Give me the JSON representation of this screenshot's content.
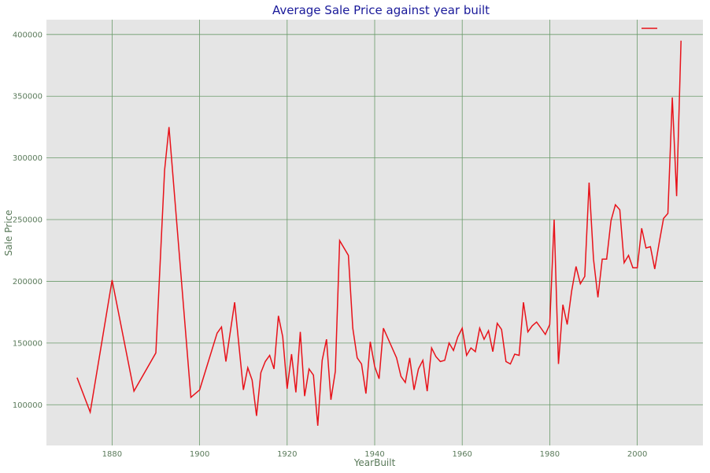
{
  "chart_data": {
    "type": "line",
    "title": "Average Sale Price against year built",
    "xlabel": "YearBuilt",
    "ylabel": "Sale Price",
    "xlim": [
      1865,
      2015
    ],
    "ylim": [
      67000,
      412000
    ],
    "xticks": [
      1880,
      1900,
      1920,
      1940,
      1960,
      1980,
      2000
    ],
    "yticks": [
      100000,
      150000,
      200000,
      250000,
      300000,
      350000,
      400000
    ],
    "grid": true,
    "legend": "top-right",
    "colors": {
      "line": "#e8121a",
      "grid": "#6a9a6a",
      "background": "#e5e5e5",
      "tick": "#5a7a5a",
      "title": "#1a1a9a"
    },
    "series": [
      {
        "x": [
          1872,
          1875,
          1880,
          1885,
          1890,
          1892,
          1893,
          1898,
          1900,
          1904,
          1905,
          1906,
          1908,
          1910,
          1911,
          1912,
          1913,
          1914,
          1915,
          1916,
          1917,
          1918,
          1919,
          1920,
          1921,
          1922,
          1923,
          1924,
          1925,
          1926,
          1927,
          1928,
          1929,
          1930,
          1931,
          1932,
          1934,
          1935,
          1936,
          1937,
          1938,
          1939,
          1940,
          1941,
          1942,
          1945,
          1946,
          1947,
          1948,
          1949,
          1950,
          1951,
          1952,
          1953,
          1954,
          1955,
          1956,
          1957,
          1958,
          1959,
          1960,
          1961,
          1962,
          1963,
          1964,
          1965,
          1966,
          1967,
          1968,
          1969,
          1970,
          1971,
          1972,
          1973,
          1974,
          1975,
          1976,
          1977,
          1978,
          1979,
          1980,
          1981,
          1982,
          1983,
          1984,
          1985,
          1986,
          1987,
          1988,
          1989,
          1990,
          1991,
          1992,
          1993,
          1994,
          1995,
          1996,
          1997,
          1998,
          1999,
          2000,
          2001,
          2002,
          2003,
          2004,
          2005,
          2006,
          2007,
          2008,
          2009,
          2010
        ],
        "values": [
          122000,
          94000,
          201000,
          111000,
          142000,
          290000,
          325000,
          106000,
          112000,
          158000,
          163000,
          135000,
          183000,
          112000,
          130000,
          120000,
          91000,
          126000,
          135000,
          140000,
          129000,
          172000,
          155000,
          113000,
          141000,
          110000,
          159000,
          107000,
          129000,
          124000,
          83000,
          136000,
          153000,
          104000,
          127000,
          233000,
          221000,
          162000,
          138000,
          133000,
          109000,
          151000,
          131000,
          121000,
          162000,
          138000,
          123000,
          118000,
          138000,
          112000,
          129000,
          136000,
          111000,
          146000,
          139000,
          135000,
          136000,
          150000,
          144000,
          155000,
          162000,
          140000,
          146000,
          143000,
          162000,
          153000,
          160000,
          143000,
          166000,
          161000,
          135000,
          133000,
          141000,
          140000,
          183000,
          159000,
          164000,
          167000,
          162000,
          157000,
          165000,
          250000,
          133000,
          181000,
          165000,
          192000,
          212000,
          198000,
          204000,
          280000,
          218000,
          187000,
          218000,
          218000,
          249000,
          262000,
          258000,
          215000,
          221000,
          211000,
          211000,
          243000,
          227000,
          228000,
          210000,
          231000,
          251000,
          255000,
          349000,
          269000,
          395000
        ]
      }
    ]
  }
}
